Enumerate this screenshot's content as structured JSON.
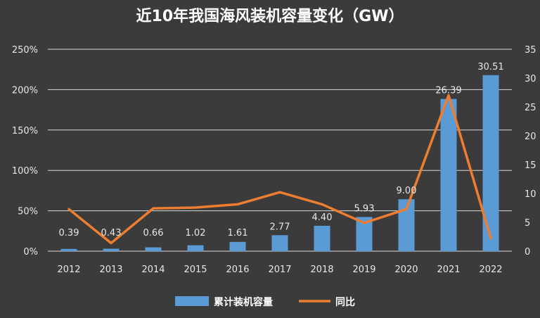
{
  "chart_data": {
    "type": "bar",
    "title": "近10年我国海风装机容量变化（GW）",
    "categories": [
      "2012",
      "2013",
      "2014",
      "2015",
      "2016",
      "2017",
      "2018",
      "2019",
      "2020",
      "2021",
      "2022"
    ],
    "series": [
      {
        "name": "累计装机容量",
        "type": "bar",
        "axis": "right",
        "color": "#5b9bd5",
        "values": [
          0.39,
          0.43,
          0.66,
          1.02,
          1.61,
          2.77,
          4.4,
          5.93,
          9.0,
          26.39,
          30.51
        ],
        "labels": [
          "0.39",
          "0.43",
          "0.66",
          "1.02",
          "1.61",
          "2.77",
          "4.40",
          "5.93",
          "9.00",
          "26.39",
          "30.51"
        ]
      },
      {
        "name": "同比",
        "type": "line",
        "axis": "left",
        "color": "#ed7d31",
        "values": [
          52,
          10,
          53,
          54,
          58,
          73,
          58,
          35,
          52,
          193,
          16
        ],
        "unit": "%"
      }
    ],
    "y_left": {
      "ylim": [
        0,
        250
      ],
      "ticks": [
        0,
        50,
        100,
        150,
        200,
        250
      ],
      "tick_labels": [
        "0%",
        "50%",
        "100%",
        "150%",
        "200%",
        "250%"
      ]
    },
    "y_right": {
      "ylim": [
        0,
        35
      ],
      "ticks": [
        0,
        5,
        10,
        15,
        20,
        25,
        30,
        35
      ],
      "tick_labels": [
        "0",
        "5",
        "10",
        "15",
        "20",
        "25",
        "30",
        "35"
      ]
    },
    "grid": true,
    "legend_position": "bottom",
    "colors": {
      "background": "#3b3b3b",
      "grid": "#d9d9d9",
      "bar": "#5b9bd5",
      "line": "#ed7d31"
    }
  }
}
